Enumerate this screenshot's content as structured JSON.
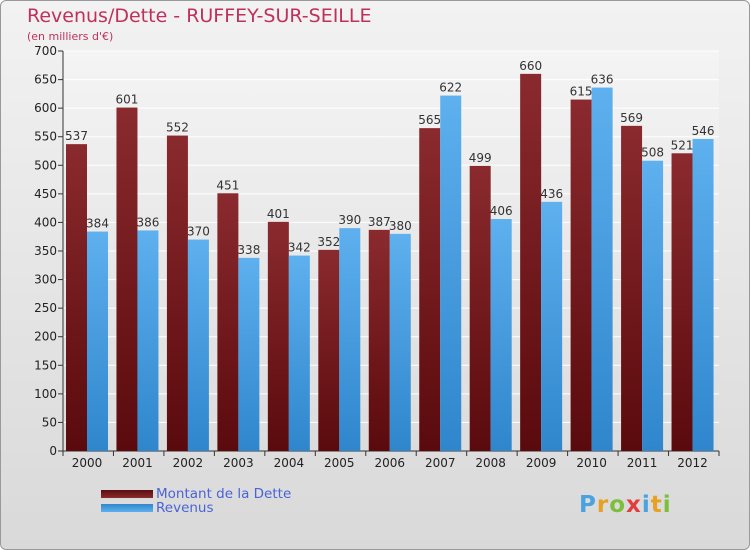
{
  "header": {
    "title": "Revenus/Dette - RUFFEY-SUR-SEILLE",
    "subtitle": "(en milliers d'€)"
  },
  "logo": {
    "text": "Proxiti"
  },
  "colors": {
    "title": "#c0305a",
    "debt": "#7a1f22",
    "revenue": "#4ea4e6",
    "legend_text": "#4a63d8"
  },
  "chart_data": {
    "type": "bar",
    "title": "Revenus/Dette - RUFFEY-SUR-SEILLE",
    "ylabel": "(en milliers d'€)",
    "xlabel": "",
    "ylim": [
      0,
      700
    ],
    "yticks": [
      0,
      50,
      100,
      150,
      200,
      250,
      300,
      350,
      400,
      450,
      500,
      550,
      600,
      650,
      700
    ],
    "grid": true,
    "legend": "bottom-left",
    "categories": [
      "2000",
      "2001",
      "2002",
      "2003",
      "2004",
      "2005",
      "2006",
      "2007",
      "2008",
      "2009",
      "2010",
      "2011",
      "2012"
    ],
    "series": [
      {
        "name": "Montant de la Dette",
        "values": [
          537,
          601,
          552,
          451,
          401,
          352,
          387,
          565,
          499,
          660,
          615,
          569,
          521
        ]
      },
      {
        "name": "Revenus",
        "values": [
          384,
          386,
          370,
          338,
          342,
          390,
          380,
          622,
          406,
          436,
          636,
          508,
          546
        ]
      }
    ]
  }
}
